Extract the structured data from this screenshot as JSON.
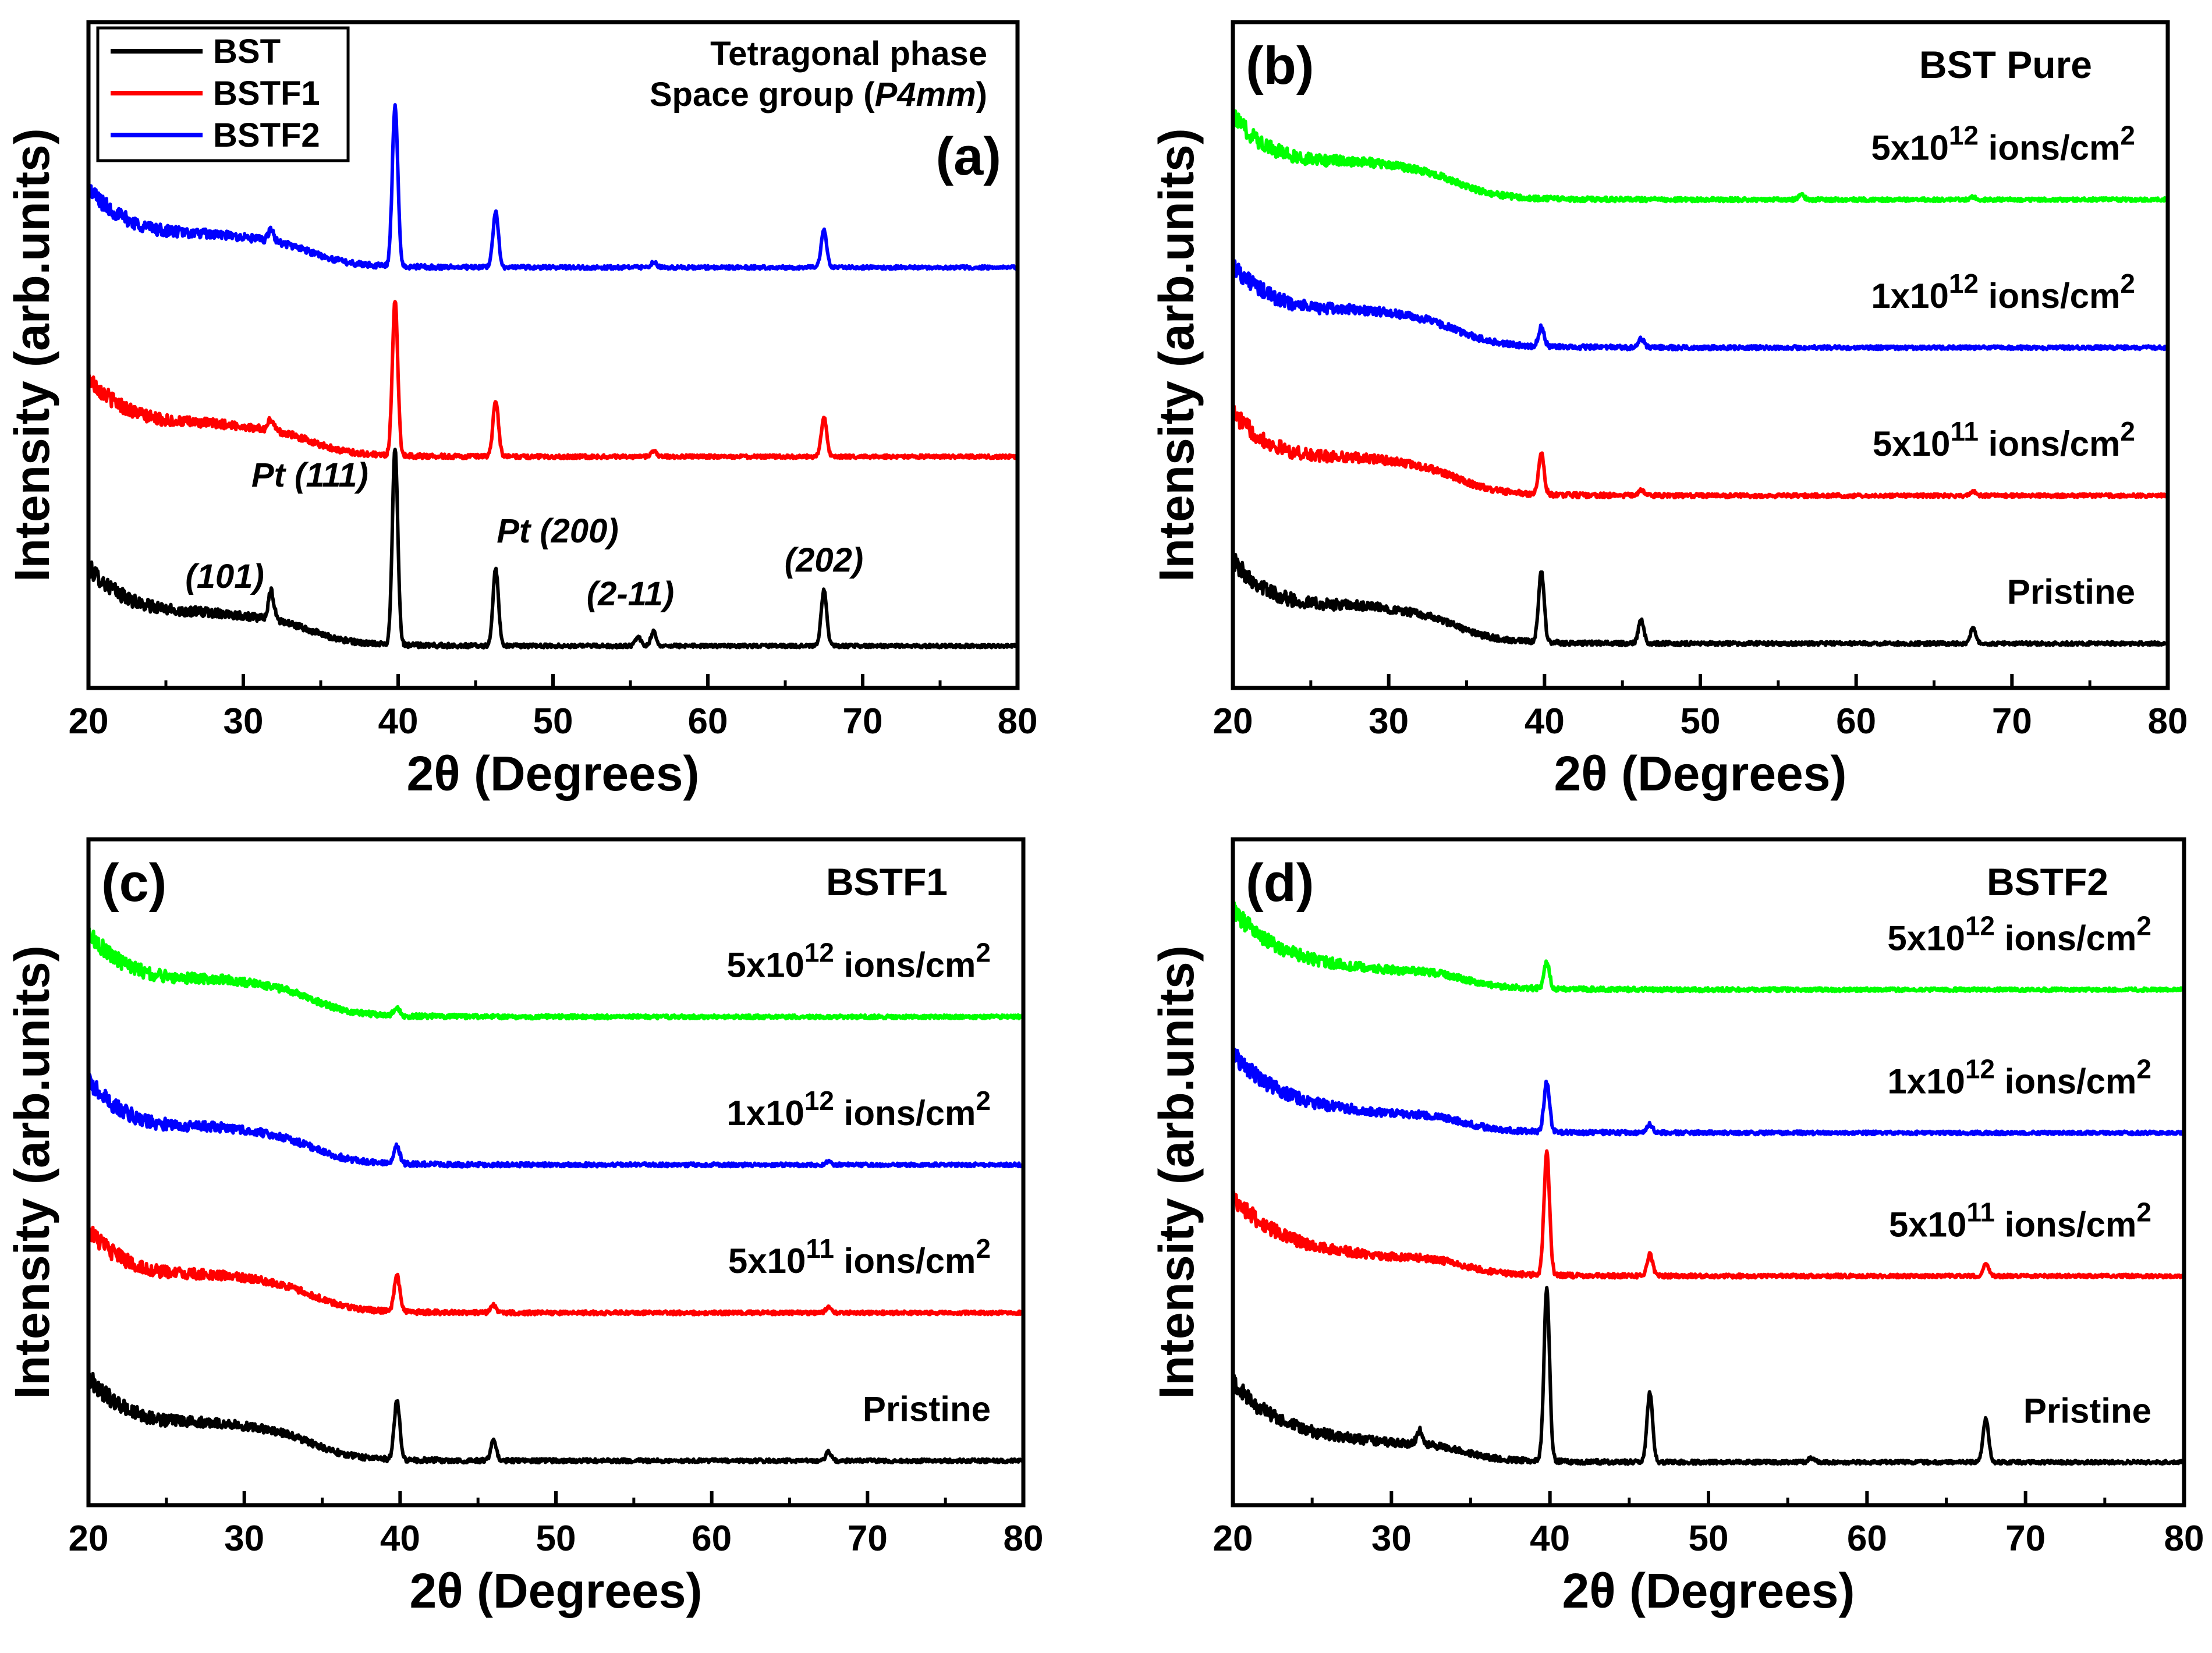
{
  "chart_data": [
    {
      "id": "a",
      "type": "line",
      "panel_label": "(a)",
      "xlabel": "2θ (Degrees)",
      "ylabel": "Intensity (arb.units)",
      "xlim": [
        20,
        80
      ],
      "xticks": [
        "20",
        "30",
        "40",
        "50",
        "60",
        "70",
        "80"
      ],
      "info_lines": [
        "Tetragonal phase",
        "Space group (",
        "P4mm",
        ")"
      ],
      "legend": [
        "BST",
        "BSTF1",
        "BSTF2"
      ],
      "peak_labels": [
        {
          "text": "(101)",
          "x": 31.8
        },
        {
          "text": "Pt (111)",
          "x": 39.8
        },
        {
          "text": "Pt (200)",
          "x": 46.3
        },
        {
          "text": "(2-11)",
          "x": 56.5
        },
        {
          "text": "(202)",
          "x": 67.5
        }
      ],
      "series": [
        {
          "name": "BST",
          "color": "#000000",
          "baseline": 0.0,
          "hump": 0.16,
          "peaks": [
            [
              31.8,
              0.2
            ],
            [
              39.8,
              1.4
            ],
            [
              46.3,
              0.55
            ],
            [
              55.5,
              0.06
            ],
            [
              56.5,
              0.1
            ],
            [
              67.5,
              0.4
            ]
          ]
        },
        {
          "name": "BSTF1",
          "color": "#ff0000",
          "baseline": 1.35,
          "hump": 0.16,
          "peaks": [
            [
              31.8,
              0.08
            ],
            [
              39.8,
              1.1
            ],
            [
              46.3,
              0.4
            ],
            [
              56.5,
              0.04
            ],
            [
              67.5,
              0.28
            ]
          ]
        },
        {
          "name": "BSTF2",
          "color": "#0000ff",
          "baseline": 2.7,
          "hump": 0.16,
          "peaks": [
            [
              31.8,
              0.08
            ],
            [
              39.8,
              1.15
            ],
            [
              46.3,
              0.4
            ],
            [
              56.5,
              0.04
            ],
            [
              67.5,
              0.27
            ]
          ]
        }
      ]
    },
    {
      "id": "b",
      "type": "line",
      "panel_label": "(b)",
      "title": "BST Pure",
      "xlabel": "2θ (Degrees)",
      "ylabel": "Intensity (arb.units)",
      "xlim": [
        20,
        80
      ],
      "xticks": [
        "20",
        "30",
        "40",
        "50",
        "60",
        "70",
        "80"
      ],
      "series": [
        {
          "name": "Pristine",
          "color": "#000000",
          "baseline": 0.0,
          "hump": 0.18,
          "peaks": [
            [
              39.8,
              0.48
            ],
            [
              46.2,
              0.16
            ],
            [
              67.5,
              0.1
            ]
          ]
        },
        {
          "name": "5x10^11 ions/cm^2",
          "color": "#ff0000",
          "baseline": 1.0,
          "hump": 0.18,
          "peaks": [
            [
              39.8,
              0.27
            ],
            [
              46.2,
              0.04
            ],
            [
              67.5,
              0.03
            ]
          ]
        },
        {
          "name": "1x10^12 ions/cm^2",
          "color": "#0000ff",
          "baseline": 2.0,
          "hump": 0.18,
          "peaks": [
            [
              39.8,
              0.13
            ],
            [
              46.2,
              0.06
            ]
          ]
        },
        {
          "name": "5x10^12 ions/cm^2",
          "color": "#00ff00",
          "baseline": 3.0,
          "hump": 0.18,
          "peaks": [
            [
              56.5,
              0.03
            ],
            [
              67.5,
              0.02
            ]
          ]
        }
      ],
      "annotations": [
        {
          "base": "Pristine",
          "exp": "",
          "unit": ""
        },
        {
          "base": "5x10",
          "exp": "11",
          "unit": "ions/cm",
          "unit_exp": "2"
        },
        {
          "base": "1x10",
          "exp": "12",
          "unit": "ions/cm",
          "unit_exp": "2"
        },
        {
          "base": "5x10",
          "exp": "12",
          "unit": "ions/cm",
          "unit_exp": "2"
        }
      ]
    },
    {
      "id": "c",
      "type": "line",
      "panel_label": "(c)",
      "title": "BSTF1",
      "xlabel": "2θ (Degrees)",
      "ylabel": "Intensity (arb.units)",
      "xlim": [
        20,
        80
      ],
      "xticks": [
        "20",
        "30",
        "40",
        "50",
        "60",
        "70",
        "80"
      ],
      "series": [
        {
          "name": "Pristine",
          "color": "#000000",
          "baseline": 0.0,
          "hump": 0.18,
          "peaks": [
            [
              39.8,
              0.4
            ],
            [
              46.0,
              0.14
            ],
            [
              67.5,
              0.06
            ]
          ]
        },
        {
          "name": "5x10^11 ions/cm^2",
          "color": "#ff0000",
          "baseline": 1.0,
          "hump": 0.18,
          "peaks": [
            [
              39.8,
              0.24
            ],
            [
              46.0,
              0.05
            ],
            [
              67.5,
              0.04
            ]
          ]
        },
        {
          "name": "1x10^12 ions/cm^2",
          "color": "#0000ff",
          "baseline": 2.0,
          "hump": 0.18,
          "peaks": [
            [
              39.8,
              0.12
            ],
            [
              67.5,
              0.02
            ]
          ]
        },
        {
          "name": "5x10^12 ions/cm^2",
          "color": "#00ff00",
          "baseline": 3.0,
          "hump": 0.18,
          "peaks": [
            [
              39.8,
              0.06
            ]
          ]
        }
      ],
      "annotations": [
        {
          "base": "Pristine",
          "exp": "",
          "unit": ""
        },
        {
          "base": "5x10",
          "exp": "11",
          "unit": "ions/cm",
          "unit_exp": "2"
        },
        {
          "base": "1x10",
          "exp": "12",
          "unit": "ions/cm",
          "unit_exp": "2"
        },
        {
          "base": "5x10",
          "exp": "12",
          "unit": "ions/cm",
          "unit_exp": "2"
        }
      ]
    },
    {
      "id": "d",
      "type": "line",
      "panel_label": "(d)",
      "title": "BSTF2",
      "xlabel": "2θ (Degrees)",
      "ylabel": "Intensity (arb.units)",
      "xlim": [
        20,
        80
      ],
      "xticks": [
        "20",
        "30",
        "40",
        "50",
        "60",
        "70",
        "80"
      ],
      "series": [
        {
          "name": "Pristine",
          "color": "#000000",
          "baseline": 0.0,
          "hump": 0.08,
          "peaks": [
            [
              31.8,
              0.1
            ],
            [
              39.8,
              1.2
            ],
            [
              46.3,
              0.48
            ],
            [
              56.5,
              0.03
            ],
            [
              67.5,
              0.3
            ]
          ]
        },
        {
          "name": "5x10^11 ions/cm^2",
          "color": "#ff0000",
          "baseline": 1.3,
          "hump": 0.08,
          "peaks": [
            [
              39.8,
              0.85
            ],
            [
              46.3,
              0.15
            ],
            [
              67.5,
              0.08
            ]
          ]
        },
        {
          "name": "1x10^12 ions/cm^2",
          "color": "#0000ff",
          "baseline": 2.3,
          "hump": 0.08,
          "peaks": [
            [
              39.8,
              0.35
            ],
            [
              46.3,
              0.06
            ]
          ]
        },
        {
          "name": "5x10^12 ions/cm^2",
          "color": "#00ff00",
          "baseline": 3.3,
          "hump": 0.08,
          "peaks": [
            [
              39.8,
              0.18
            ]
          ]
        }
      ],
      "annotations": [
        {
          "base": "Pristine",
          "exp": "",
          "unit": ""
        },
        {
          "base": "5x10",
          "exp": "11",
          "unit": "ions/cm",
          "unit_exp": "2"
        },
        {
          "base": "1x10",
          "exp": "12",
          "unit": "ions/cm",
          "unit_exp": "2"
        },
        {
          "base": "5x10",
          "exp": "12",
          "unit": "ions/cm",
          "unit_exp": "2"
        }
      ]
    }
  ]
}
